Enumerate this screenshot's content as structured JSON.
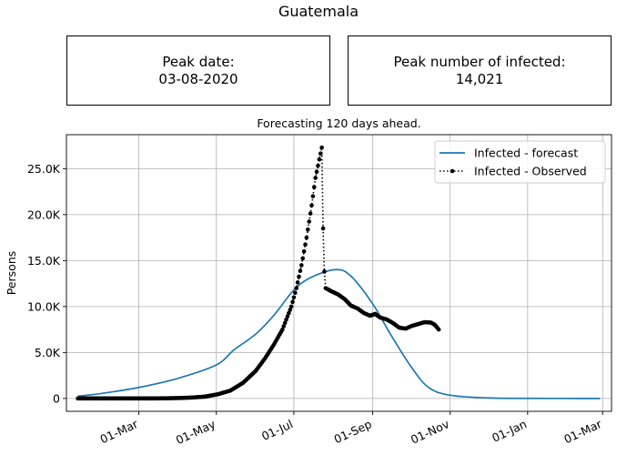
{
  "header": {
    "title": "Guatemala"
  },
  "peak_date": {
    "label": "Peak date:",
    "value": "03-08-2020"
  },
  "peak_infected": {
    "label": "Peak number of infected:",
    "value": "14,021"
  },
  "chart_data": {
    "type": "line",
    "title": "Forecasting 120 days ahead.",
    "xlabel": "",
    "ylabel": "Persons",
    "xlim": [
      "2020-01-04",
      "2021-03-08"
    ],
    "ylim": [
      -1400,
      28700
    ],
    "grid": true,
    "legend_position": "top-right",
    "x_ticks": [
      {
        "date": "2020-03-01",
        "label": "01-Mar"
      },
      {
        "date": "2020-05-01",
        "label": "01-May"
      },
      {
        "date": "2020-07-01",
        "label": "01-Jul"
      },
      {
        "date": "2020-09-01",
        "label": "01-Sep"
      },
      {
        "date": "2020-11-01",
        "label": "01-Nov"
      },
      {
        "date": "2021-01-01",
        "label": "01-Jan"
      },
      {
        "date": "2021-03-01",
        "label": "01-Mar"
      }
    ],
    "y_ticks": [
      {
        "value": 0,
        "label": "0"
      },
      {
        "value": 5000,
        "label": "5.0K"
      },
      {
        "value": 10000,
        "label": "10.0K"
      },
      {
        "value": 15000,
        "label": "15.0K"
      },
      {
        "value": 20000,
        "label": "20.0K"
      },
      {
        "value": 25000,
        "label": "25.0K"
      }
    ],
    "series": [
      {
        "name": "Infected - forecast",
        "color": "#1f77b4",
        "style": "solid",
        "points": [
          [
            "2020-01-13",
            250
          ],
          [
            "2020-02-01",
            550
          ],
          [
            "2020-03-01",
            1200
          ],
          [
            "2020-04-01",
            2200
          ],
          [
            "2020-05-01",
            3650
          ],
          [
            "2020-05-15",
            5300
          ],
          [
            "2020-06-01",
            7000
          ],
          [
            "2020-06-15",
            9000
          ],
          [
            "2020-07-01",
            11800
          ],
          [
            "2020-07-15",
            13200
          ],
          [
            "2020-08-03",
            14021
          ],
          [
            "2020-08-15",
            13300
          ],
          [
            "2020-09-01",
            10300
          ],
          [
            "2020-09-15",
            7000
          ],
          [
            "2020-10-01",
            3500
          ],
          [
            "2020-10-15",
            1200
          ],
          [
            "2020-11-01",
            350
          ],
          [
            "2020-12-01",
            60
          ],
          [
            "2021-01-01",
            10
          ],
          [
            "2021-02-27",
            0
          ]
        ]
      },
      {
        "name": "Infected - Observed",
        "color": "#000000",
        "style": "dotted",
        "points": [
          [
            "2020-01-13",
            0
          ],
          [
            "2020-01-23",
            0
          ],
          [
            "2020-02-02",
            0
          ],
          [
            "2020-02-12",
            0
          ],
          [
            "2020-02-22",
            0
          ],
          [
            "2020-03-03",
            0
          ],
          [
            "2020-03-13",
            5
          ],
          [
            "2020-03-23",
            20
          ],
          [
            "2020-04-02",
            45
          ],
          [
            "2020-04-12",
            100
          ],
          [
            "2020-04-22",
            200
          ],
          [
            "2020-05-02",
            450
          ],
          [
            "2020-05-12",
            850
          ],
          [
            "2020-05-22",
            1700
          ],
          [
            "2020-06-01",
            3000
          ],
          [
            "2020-06-08",
            4300
          ],
          [
            "2020-06-15",
            5800
          ],
          [
            "2020-06-22",
            7500
          ],
          [
            "2020-06-29",
            10000
          ],
          [
            "2020-07-03",
            12000
          ],
          [
            "2020-07-07",
            14500
          ],
          [
            "2020-07-11",
            17500
          ],
          [
            "2020-07-15",
            21000
          ],
          [
            "2020-07-18",
            24000
          ],
          [
            "2020-07-21",
            26000
          ],
          [
            "2020-07-23",
            27300
          ],
          [
            "2020-07-24",
            18500
          ],
          [
            "2020-07-25",
            13800
          ],
          [
            "2020-07-26",
            12000
          ],
          [
            "2020-07-30",
            11700
          ],
          [
            "2020-08-05",
            11300
          ],
          [
            "2020-08-10",
            10800
          ],
          [
            "2020-08-15",
            10100
          ],
          [
            "2020-08-20",
            9800
          ],
          [
            "2020-08-25",
            9300
          ],
          [
            "2020-08-30",
            9000
          ],
          [
            "2020-09-03",
            9200
          ],
          [
            "2020-09-07",
            8800
          ],
          [
            "2020-09-12",
            8600
          ],
          [
            "2020-09-17",
            8200
          ],
          [
            "2020-09-22",
            7700
          ],
          [
            "2020-09-27",
            7600
          ],
          [
            "2020-10-02",
            7900
          ],
          [
            "2020-10-07",
            8100
          ],
          [
            "2020-10-12",
            8300
          ],
          [
            "2020-10-17",
            8250
          ],
          [
            "2020-10-20",
            8000
          ],
          [
            "2020-10-23",
            7500
          ]
        ]
      }
    ]
  }
}
